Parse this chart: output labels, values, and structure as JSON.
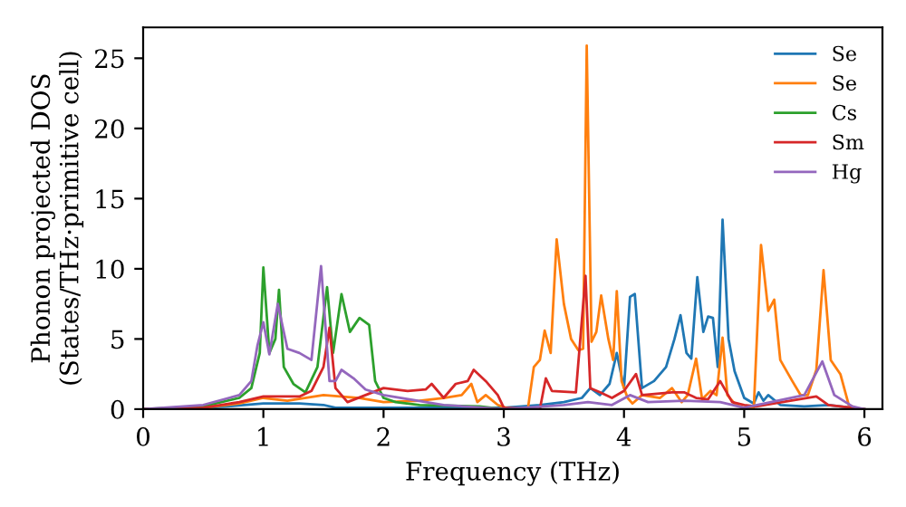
{
  "chart_data": {
    "type": "line",
    "xlabel": "Frequency (THz)",
    "ylabel": "Phonon projected DOS\n(States/THz·primitive cell)",
    "xlim": [
      0,
      6.15
    ],
    "ylim": [
      0,
      27.2
    ],
    "xticks": [
      0,
      1,
      2,
      3,
      4,
      5,
      6
    ],
    "yticks": [
      0,
      5,
      10,
      15,
      20,
      25
    ],
    "grid": false,
    "legend": "top right",
    "line_style": "solid",
    "marker": "none",
    "series": [
      {
        "name": "Se",
        "color": "#1f77b4",
        "x": [
          0,
          0.5,
          0.7,
          1.0,
          1.3,
          1.5,
          1.6,
          2.0,
          2.5,
          3.0,
          3.3,
          3.5,
          3.65,
          3.72,
          3.8,
          3.88,
          3.94,
          4.0,
          4.05,
          4.09,
          4.15,
          4.25,
          4.35,
          4.42,
          4.47,
          4.52,
          4.56,
          4.61,
          4.66,
          4.7,
          4.74,
          4.78,
          4.82,
          4.87,
          4.92,
          5.0,
          5.08,
          5.12,
          5.16,
          5.2,
          5.3,
          5.5,
          5.7,
          6.0
        ],
        "values": [
          0,
          0.1,
          0.2,
          0.4,
          0.4,
          0.3,
          0.1,
          0.1,
          0.1,
          0.1,
          0.3,
          0.5,
          0.8,
          1.5,
          1.0,
          1.8,
          4.0,
          1.5,
          8.0,
          8.2,
          1.5,
          2.0,
          3.0,
          5.0,
          6.7,
          4.0,
          3.6,
          9.4,
          5.5,
          6.6,
          6.5,
          3.0,
          13.5,
          5.0,
          2.7,
          0.8,
          0.4,
          1.2,
          0.6,
          1.0,
          0.3,
          0.2,
          0.3,
          0
        ]
      },
      {
        "name": "Se",
        "color": "#ff7f0e",
        "x": [
          0,
          0.5,
          0.8,
          1.0,
          1.2,
          1.5,
          1.8,
          2.0,
          2.3,
          2.5,
          2.65,
          2.73,
          2.78,
          2.85,
          2.95,
          3.05,
          3.2,
          3.25,
          3.3,
          3.34,
          3.39,
          3.44,
          3.5,
          3.56,
          3.62,
          3.66,
          3.69,
          3.73,
          3.77,
          3.81,
          3.87,
          3.91,
          3.94,
          3.98,
          4.03,
          4.07,
          4.15,
          4.3,
          4.4,
          4.48,
          4.53,
          4.6,
          4.65,
          4.72,
          4.77,
          4.82,
          4.86,
          4.93,
          5.0,
          5.08,
          5.14,
          5.2,
          5.25,
          5.3,
          5.4,
          5.47,
          5.53,
          5.6,
          5.66,
          5.72,
          5.8,
          5.87,
          5.95
        ],
        "values": [
          0,
          0.1,
          0.4,
          0.8,
          0.6,
          1.0,
          0.8,
          0.5,
          0.6,
          0.8,
          1.0,
          1.8,
          0.5,
          1.0,
          0.3,
          0,
          0,
          3.0,
          3.5,
          5.6,
          4.0,
          12.1,
          7.5,
          5.0,
          4.2,
          4.3,
          25.9,
          4.8,
          5.5,
          8.1,
          5.0,
          3.5,
          8.4,
          2.0,
          0.8,
          0.4,
          1.0,
          0.8,
          1.5,
          0.5,
          1.0,
          3.6,
          0.7,
          1.3,
          1.0,
          5.1,
          1.0,
          0.3,
          0.1,
          0.1,
          11.7,
          7.0,
          7.8,
          3.5,
          2.0,
          1.0,
          1.0,
          2.8,
          9.9,
          3.5,
          2.5,
          0.3,
          0
        ]
      },
      {
        "name": "Cs",
        "color": "#2ca02c",
        "x": [
          0,
          0.5,
          0.8,
          0.9,
          0.97,
          1.0,
          1.05,
          1.1,
          1.13,
          1.17,
          1.25,
          1.35,
          1.45,
          1.53,
          1.58,
          1.65,
          1.72,
          1.8,
          1.88,
          1.93,
          2.0,
          2.1,
          2.3,
          2.8,
          3.0
        ],
        "values": [
          0,
          0.2,
          0.8,
          1.5,
          4.0,
          10.1,
          4.0,
          5.0,
          8.5,
          3.0,
          1.8,
          1.2,
          3.0,
          8.7,
          4.0,
          8.2,
          5.5,
          6.5,
          6.0,
          2.0,
          0.8,
          0.5,
          0.3,
          0.2,
          0
        ]
      },
      {
        "name": "Sm",
        "color": "#d62728",
        "x": [
          0,
          0.5,
          0.8,
          1.0,
          1.3,
          1.4,
          1.5,
          1.55,
          1.6,
          1.7,
          2.0,
          2.2,
          2.35,
          2.4,
          2.5,
          2.6,
          2.7,
          2.75,
          2.85,
          2.95,
          3.0,
          3.3,
          3.35,
          3.4,
          3.6,
          3.68,
          3.72,
          3.8,
          3.9,
          4.0,
          4.1,
          4.15,
          4.4,
          4.5,
          4.6,
          4.7,
          4.8,
          4.9,
          5.0,
          5.1,
          5.6,
          5.7,
          6.0
        ],
        "values": [
          0,
          0.1,
          0.5,
          0.9,
          0.9,
          1.3,
          3.0,
          5.8,
          1.5,
          0.5,
          1.5,
          1.3,
          1.4,
          1.8,
          0.8,
          1.8,
          2.0,
          2.8,
          2.0,
          1.0,
          0.1,
          0,
          2.2,
          1.3,
          1.2,
          9.5,
          1.5,
          1.2,
          0.8,
          1.3,
          2.5,
          1.0,
          1.2,
          1.2,
          0.8,
          0.7,
          2.0,
          0.5,
          0.3,
          0.2,
          0.9,
          0.3,
          0
        ]
      },
      {
        "name": "Hg",
        "color": "#9467bd",
        "x": [
          0,
          0.5,
          0.8,
          0.9,
          0.95,
          1.0,
          1.05,
          1.12,
          1.2,
          1.3,
          1.4,
          1.48,
          1.55,
          1.6,
          1.65,
          1.75,
          1.85,
          2.0,
          2.5,
          3.0,
          3.5,
          3.7,
          3.9,
          4.05,
          4.2,
          4.5,
          4.8,
          5.0,
          5.5,
          5.65,
          5.75,
          5.9,
          6.0
        ],
        "values": [
          0,
          0.3,
          1.0,
          2.0,
          4.5,
          6.2,
          3.9,
          7.5,
          4.3,
          4.0,
          3.5,
          10.2,
          2.0,
          2.0,
          2.8,
          2.2,
          1.4,
          1.0,
          0.3,
          0,
          0.3,
          0.5,
          0.3,
          1.0,
          0.5,
          0.6,
          0.5,
          0.1,
          1.0,
          3.4,
          1.0,
          0.2,
          0
        ]
      }
    ]
  }
}
